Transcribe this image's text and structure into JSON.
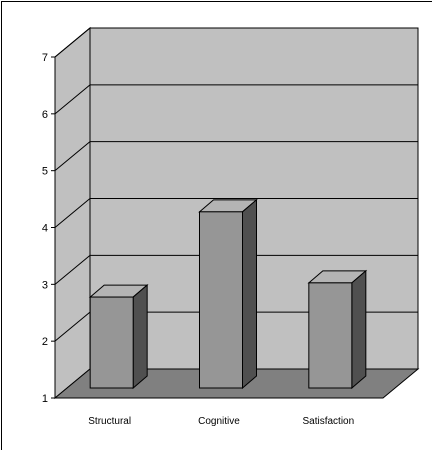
{
  "chart_data": {
    "type": "bar",
    "style": "3d",
    "title": "",
    "xlabel": "",
    "ylabel": "",
    "categories": [
      "Structural",
      "Cognitive",
      "Satisfaction"
    ],
    "values": [
      2.6,
      4.1,
      2.85
    ],
    "yticks": [
      "1",
      "2",
      "3",
      "4",
      "5",
      "6",
      "7"
    ],
    "ylim": [
      1,
      7
    ],
    "grid": true,
    "legend": "none",
    "colors": {
      "wall": "#c0c0c0",
      "floor": "#808080",
      "bar_front": "#969696",
      "bar_top": "#b4b4b4",
      "bar_side": "#505050",
      "grid": "#000000"
    }
  }
}
